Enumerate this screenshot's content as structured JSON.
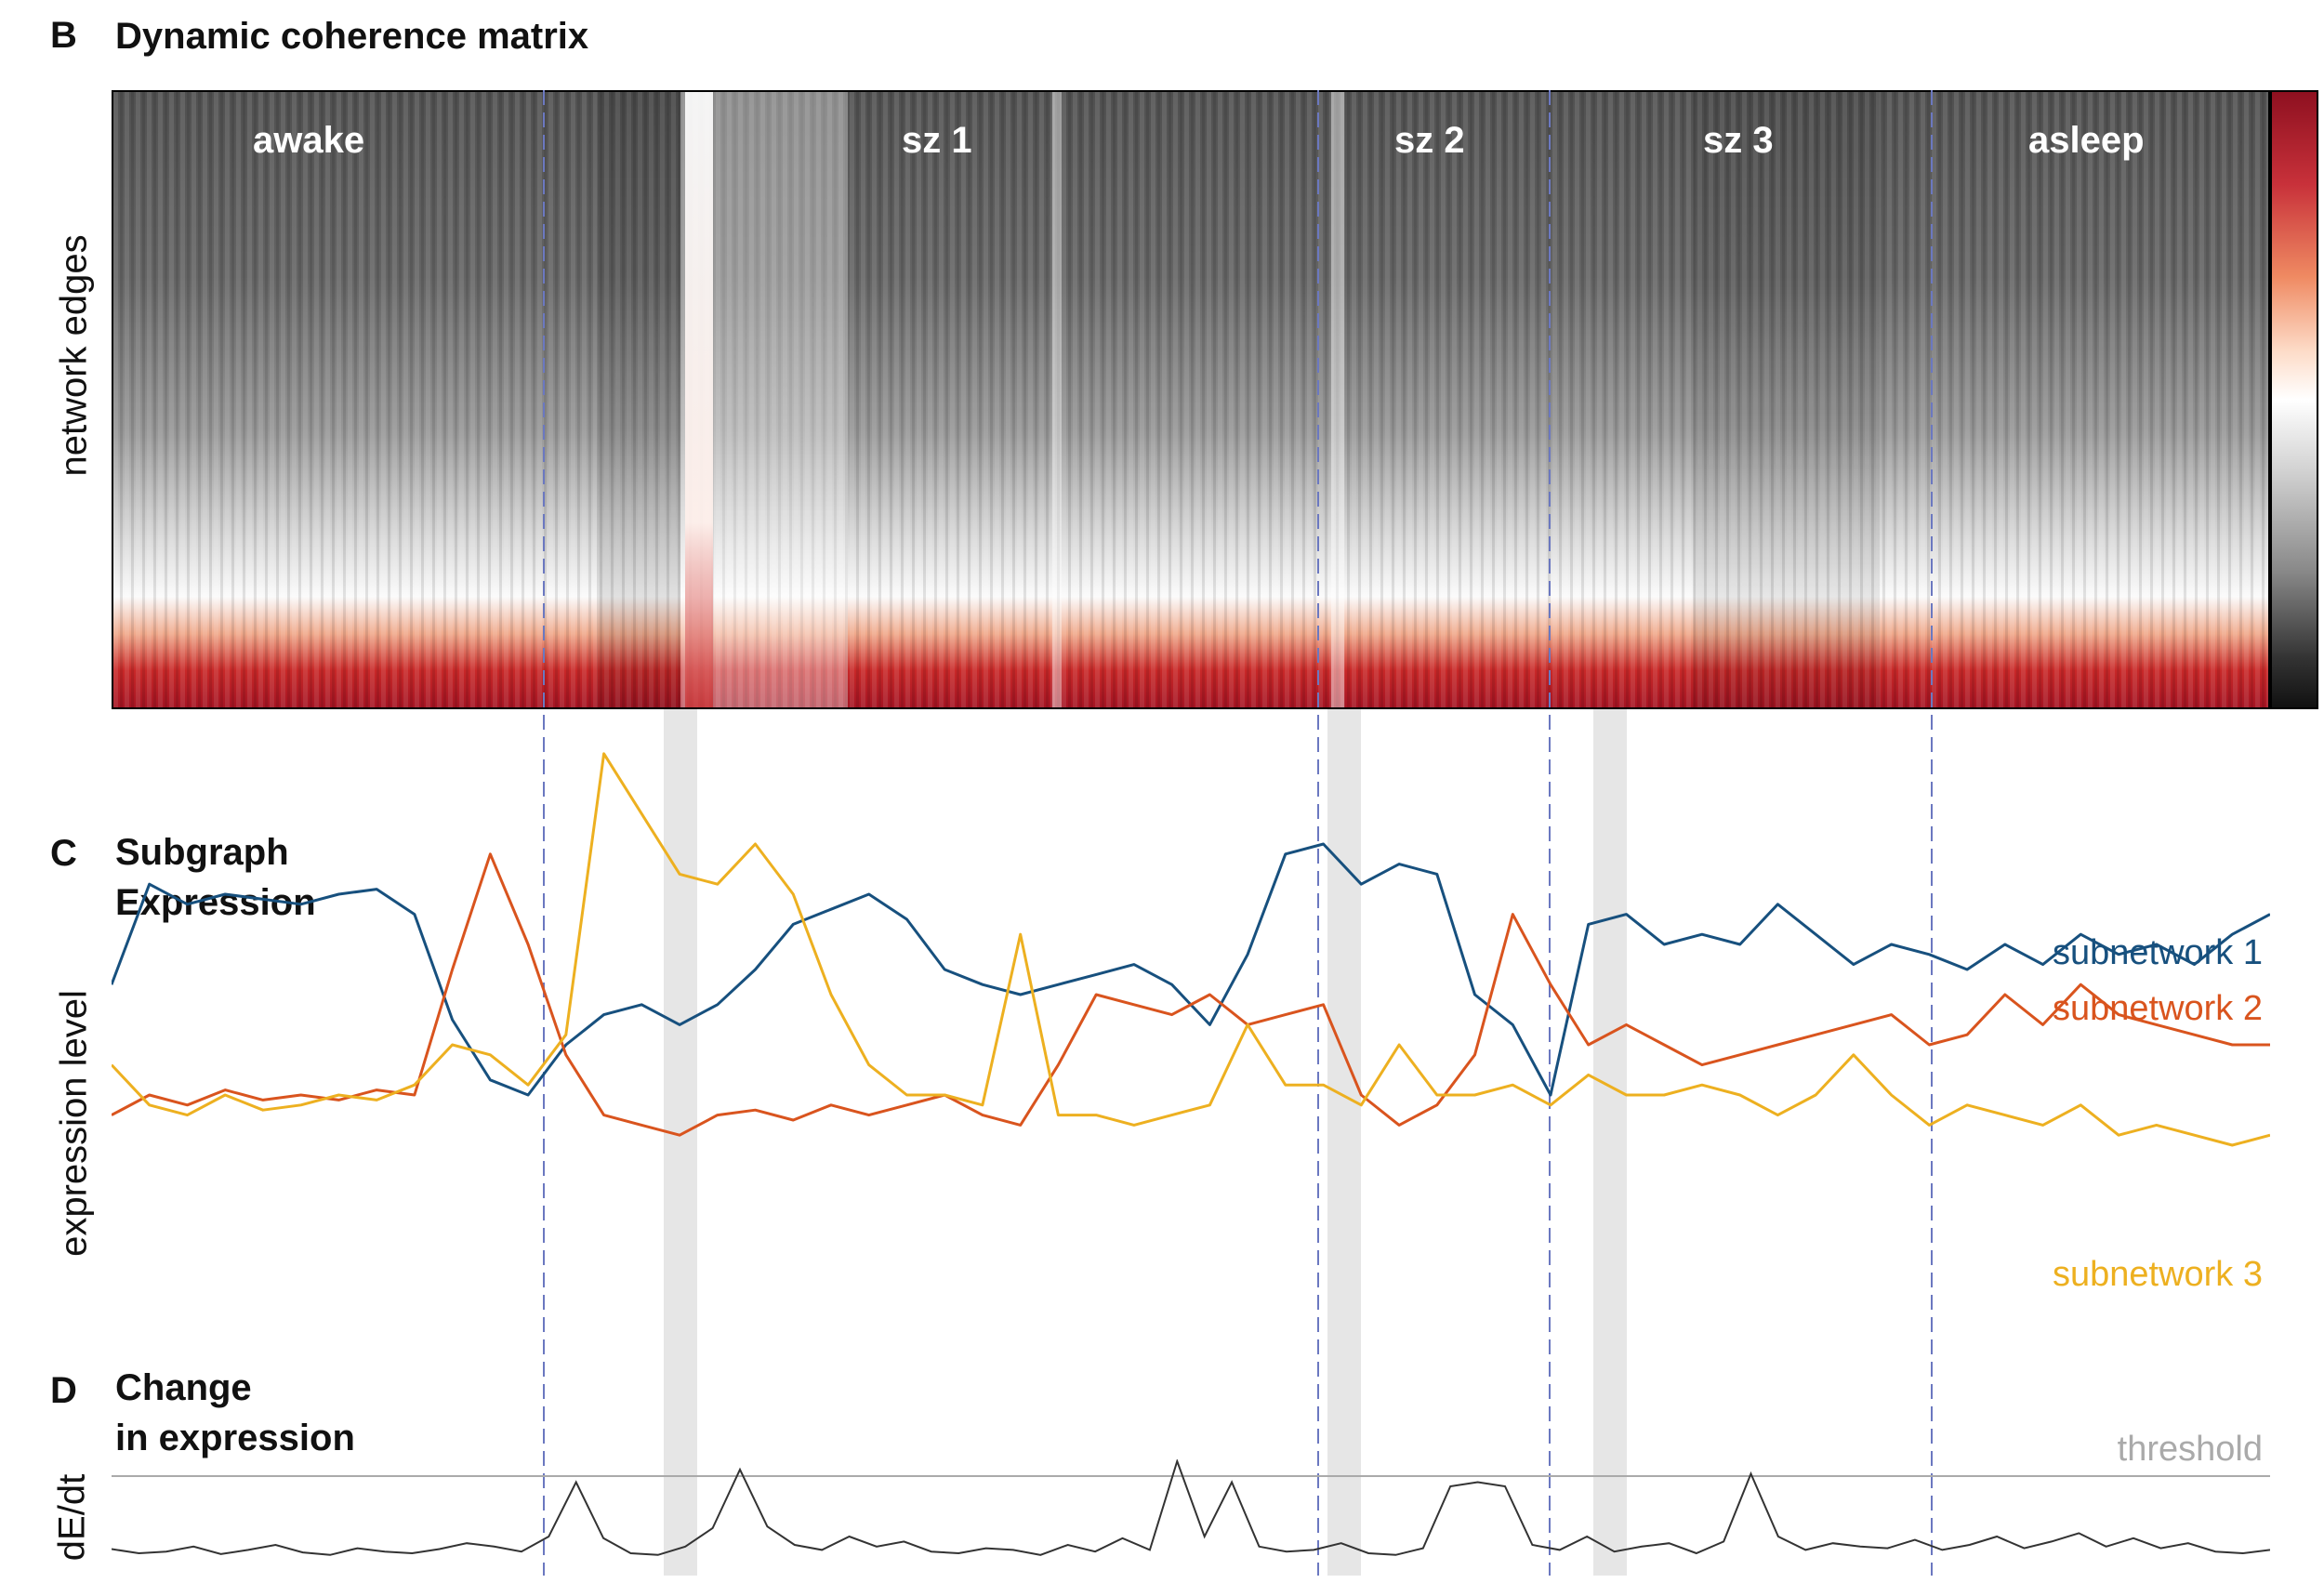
{
  "panels": {
    "b": {
      "letter": "B",
      "title": "Dynamic coherence matrix",
      "ylabel": "network edges",
      "states": [
        "awake",
        "sz 1",
        "sz 2",
        "sz 3",
        "asleep"
      ]
    },
    "c": {
      "letter": "C",
      "title_line1": "Subgraph",
      "title_line2": "Expression",
      "ylabel": "expression level",
      "legend": [
        "subnetwork 1",
        "subnetwork 2",
        "subnetwork 3"
      ]
    },
    "d": {
      "letter": "D",
      "title_line1": "Change",
      "title_line2": "in expression",
      "ylabel": "dE/dt",
      "threshold_label": "threshold"
    }
  },
  "colors": {
    "subnetwork1": "#17507e",
    "subnetwork2": "#d9541e",
    "subnetwork3": "#edb020",
    "boundary": "#6b78c0",
    "highlight": "#e6e6e6",
    "threshold": "#aaaaaa"
  },
  "chart_data": [
    {
      "type": "heatmap",
      "title": "Dynamic coherence matrix",
      "ylabel": "network edges",
      "colorbar": "diverging gray-white-red",
      "segments": [
        "awake",
        "sz 1",
        "sz 2",
        "sz 3",
        "asleep"
      ]
    },
    {
      "type": "line",
      "title": "Subgraph Expression",
      "ylabel": "expression level",
      "series": [
        {
          "name": "subnetwork 1",
          "values": [
            0.52,
            0.72,
            0.68,
            0.7,
            0.69,
            0.68,
            0.7,
            0.71,
            0.66,
            0.45,
            0.33,
            0.3,
            0.4,
            0.46,
            0.48,
            0.44,
            0.48,
            0.55,
            0.64,
            0.67,
            0.7,
            0.65,
            0.55,
            0.52,
            0.5,
            0.52,
            0.54,
            0.56,
            0.52,
            0.44,
            0.58,
            0.78,
            0.8,
            0.72,
            0.76,
            0.74,
            0.5,
            0.44,
            0.3,
            0.64,
            0.66,
            0.6,
            0.62,
            0.6,
            0.68,
            0.62,
            0.56,
            0.6,
            0.58,
            0.55,
            0.6,
            0.56,
            0.62,
            0.58,
            0.6,
            0.56,
            0.62,
            0.66
          ]
        },
        {
          "name": "subnetwork 2",
          "values": [
            0.26,
            0.3,
            0.28,
            0.31,
            0.29,
            0.3,
            0.29,
            0.31,
            0.3,
            0.55,
            0.78,
            0.6,
            0.38,
            0.26,
            0.24,
            0.22,
            0.26,
            0.27,
            0.25,
            0.28,
            0.26,
            0.28,
            0.3,
            0.26,
            0.24,
            0.36,
            0.5,
            0.48,
            0.46,
            0.5,
            0.44,
            0.46,
            0.48,
            0.3,
            0.24,
            0.28,
            0.38,
            0.66,
            0.52,
            0.4,
            0.44,
            0.4,
            0.36,
            0.38,
            0.4,
            0.42,
            0.44,
            0.46,
            0.4,
            0.42,
            0.5,
            0.44,
            0.52,
            0.46,
            0.44,
            0.42,
            0.4,
            0.4
          ]
        },
        {
          "name": "subnetwork 3",
          "values": [
            0.36,
            0.28,
            0.26,
            0.3,
            0.27,
            0.28,
            0.3,
            0.29,
            0.32,
            0.4,
            0.38,
            0.32,
            0.42,
            0.98,
            0.86,
            0.74,
            0.72,
            0.8,
            0.7,
            0.5,
            0.36,
            0.3,
            0.3,
            0.28,
            0.62,
            0.26,
            0.26,
            0.24,
            0.26,
            0.28,
            0.44,
            0.32,
            0.32,
            0.28,
            0.4,
            0.3,
            0.3,
            0.32,
            0.28,
            0.34,
            0.3,
            0.3,
            0.32,
            0.3,
            0.26,
            0.3,
            0.38,
            0.3,
            0.24,
            0.28,
            0.26,
            0.24,
            0.28,
            0.22,
            0.24,
            0.22,
            0.2,
            0.22
          ]
        }
      ]
    },
    {
      "type": "line",
      "title": "Change in expression",
      "ylabel": "dE/dt",
      "annotation": "threshold",
      "series": [
        {
          "name": "dE/dt",
          "values": [
            0.15,
            0.1,
            0.12,
            0.18,
            0.09,
            0.14,
            0.2,
            0.11,
            0.08,
            0.16,
            0.12,
            0.1,
            0.15,
            0.22,
            0.18,
            0.12,
            0.3,
            0.95,
            0.28,
            0.1,
            0.08,
            0.18,
            0.4,
            1.1,
            0.42,
            0.2,
            0.14,
            0.3,
            0.18,
            0.24,
            0.12,
            0.1,
            0.16,
            0.14,
            0.08,
            0.2,
            0.12,
            0.28,
            0.14,
            1.2,
            0.3,
            0.95,
            0.18,
            0.12,
            0.14,
            0.22,
            0.1,
            0.08,
            0.16,
            0.9,
            0.95,
            0.9,
            0.2,
            0.14,
            0.3,
            0.12,
            0.18,
            0.22,
            0.1,
            0.24,
            1.05,
            0.3,
            0.14,
            0.22,
            0.18,
            0.16,
            0.26,
            0.14,
            0.2,
            0.3,
            0.16,
            0.24,
            0.34,
            0.18,
            0.28,
            0.16,
            0.22,
            0.12,
            0.1,
            0.14
          ]
        }
      ]
    }
  ]
}
